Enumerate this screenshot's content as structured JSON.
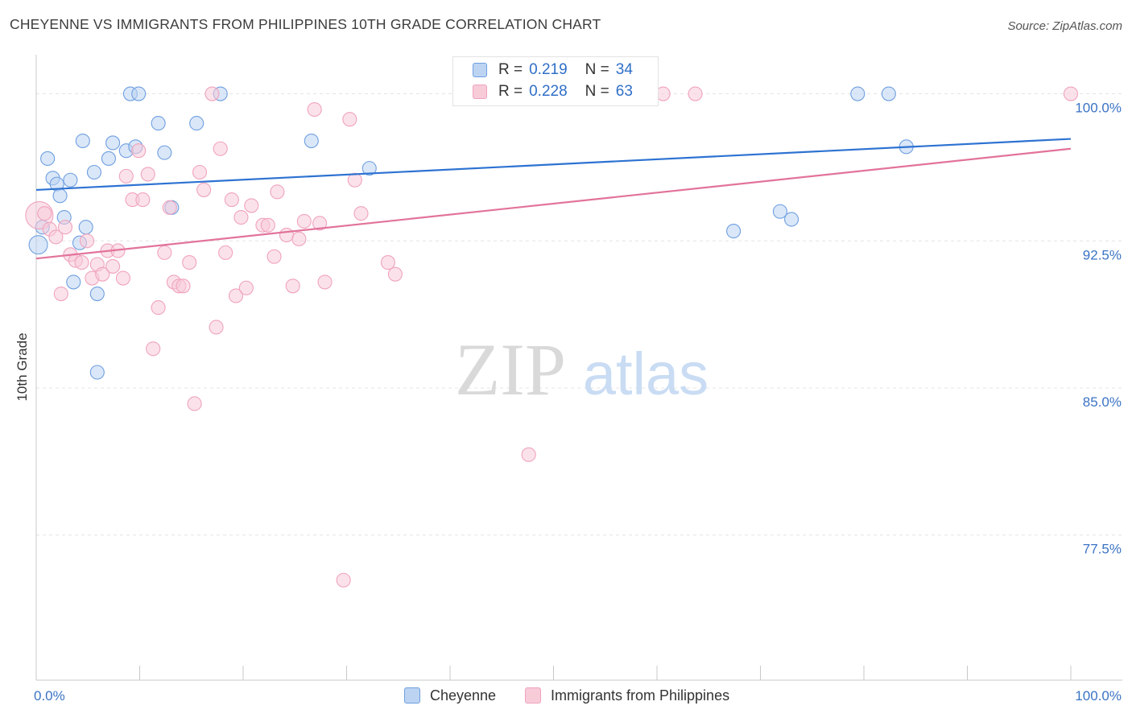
{
  "title": "CHEYENNE VS IMMIGRANTS FROM PHILIPPINES 10TH GRADE CORRELATION CHART",
  "source": "Source: ZipAtlas.com",
  "watermark": {
    "zip": "ZIP",
    "atlas": "atlas"
  },
  "legend": {
    "r_label": "R =",
    "n_label": "N =",
    "items": [
      {
        "r": "0.219",
        "n": "34"
      },
      {
        "r": "0.228",
        "n": "63"
      }
    ]
  },
  "chart_data": {
    "type": "scatter",
    "title": "CHEYENNE VS IMMIGRANTS FROM PHILIPPINES 10TH GRADE CORRELATION CHART",
    "xlabel": "",
    "ylabel": "10th Grade",
    "xlim": [
      0,
      100
    ],
    "ylim": [
      70.1,
      101.5
    ],
    "x_tick_labels": [
      "0.0%",
      "100.0%"
    ],
    "y_ticks": [
      {
        "value": 100.0,
        "label": "100.0%"
      },
      {
        "value": 92.5,
        "label": "92.5%"
      },
      {
        "value": 85.0,
        "label": "85.0%"
      },
      {
        "value": 77.5,
        "label": "77.5%"
      }
    ],
    "grid": true,
    "legend_position": "top-center",
    "series": [
      {
        "name": "Cheyenne",
        "color": "#6f9fe0",
        "fill": "#bcd4f2",
        "line_color": "#2d72d2",
        "trend": {
          "x": [
            0,
            100
          ],
          "y": [
            95.1,
            97.7
          ]
        },
        "points": [
          {
            "x": 0.2,
            "y": 92.3,
            "s": 1.35
          },
          {
            "x": 0.6,
            "y": 93.2
          },
          {
            "x": 1.1,
            "y": 96.7
          },
          {
            "x": 1.6,
            "y": 95.7
          },
          {
            "x": 2.0,
            "y": 95.4
          },
          {
            "x": 2.3,
            "y": 94.8
          },
          {
            "x": 2.7,
            "y": 93.7
          },
          {
            "x": 3.3,
            "y": 95.6
          },
          {
            "x": 3.6,
            "y": 90.4
          },
          {
            "x": 4.2,
            "y": 92.4
          },
          {
            "x": 4.5,
            "y": 97.6
          },
          {
            "x": 4.8,
            "y": 93.2
          },
          {
            "x": 5.6,
            "y": 96.0
          },
          {
            "x": 5.9,
            "y": 89.8
          },
          {
            "x": 5.9,
            "y": 85.8
          },
          {
            "x": 7.0,
            "y": 96.7
          },
          {
            "x": 7.4,
            "y": 97.5
          },
          {
            "x": 8.7,
            "y": 97.1
          },
          {
            "x": 9.1,
            "y": 100.0
          },
          {
            "x": 9.9,
            "y": 100.0
          },
          {
            "x": 9.6,
            "y": 97.3
          },
          {
            "x": 11.8,
            "y": 98.5
          },
          {
            "x": 12.4,
            "y": 97.0
          },
          {
            "x": 13.1,
            "y": 94.2
          },
          {
            "x": 15.5,
            "y": 98.5
          },
          {
            "x": 17.8,
            "y": 100.0
          },
          {
            "x": 26.6,
            "y": 97.6
          },
          {
            "x": 32.2,
            "y": 96.2
          },
          {
            "x": 67.4,
            "y": 93.0
          },
          {
            "x": 71.9,
            "y": 94.0
          },
          {
            "x": 73.0,
            "y": 93.6
          },
          {
            "x": 79.4,
            "y": 100.0
          },
          {
            "x": 82.4,
            "y": 100.0
          },
          {
            "x": 84.1,
            "y": 97.3
          }
        ]
      },
      {
        "name": "Immigrants from Philippines",
        "color": "#f0a3bd",
        "fill": "#f8cbd9",
        "line_color": "#e2739b",
        "trend": {
          "x": [
            0,
            100
          ],
          "y": [
            91.6,
            97.2
          ]
        },
        "points": [
          {
            "x": 0.3,
            "y": 93.8,
            "s": 2.0
          },
          {
            "x": 0.8,
            "y": 93.9
          },
          {
            "x": 1.3,
            "y": 93.1
          },
          {
            "x": 1.9,
            "y": 92.7
          },
          {
            "x": 2.4,
            "y": 89.8
          },
          {
            "x": 2.8,
            "y": 93.2
          },
          {
            "x": 3.3,
            "y": 91.8
          },
          {
            "x": 3.8,
            "y": 91.5
          },
          {
            "x": 4.4,
            "y": 91.4
          },
          {
            "x": 4.9,
            "y": 92.5
          },
          {
            "x": 5.4,
            "y": 90.6
          },
          {
            "x": 5.9,
            "y": 91.3
          },
          {
            "x": 6.4,
            "y": 90.8
          },
          {
            "x": 6.9,
            "y": 92.0
          },
          {
            "x": 7.4,
            "y": 91.2
          },
          {
            "x": 7.9,
            "y": 92.0
          },
          {
            "x": 8.4,
            "y": 90.6
          },
          {
            "x": 8.7,
            "y": 95.8
          },
          {
            "x": 9.3,
            "y": 94.6
          },
          {
            "x": 9.9,
            "y": 97.1
          },
          {
            "x": 10.3,
            "y": 94.6
          },
          {
            "x": 10.8,
            "y": 95.9
          },
          {
            "x": 11.3,
            "y": 87.0
          },
          {
            "x": 11.8,
            "y": 89.1
          },
          {
            "x": 12.4,
            "y": 91.9
          },
          {
            "x": 12.9,
            "y": 94.2
          },
          {
            "x": 13.3,
            "y": 90.4
          },
          {
            "x": 13.8,
            "y": 90.2
          },
          {
            "x": 14.2,
            "y": 90.2
          },
          {
            "x": 14.8,
            "y": 91.4
          },
          {
            "x": 15.3,
            "y": 84.2
          },
          {
            "x": 15.8,
            "y": 96.0
          },
          {
            "x": 16.2,
            "y": 95.1
          },
          {
            "x": 17.0,
            "y": 100.0
          },
          {
            "x": 17.4,
            "y": 88.1
          },
          {
            "x": 17.8,
            "y": 97.2
          },
          {
            "x": 18.3,
            "y": 91.9
          },
          {
            "x": 18.9,
            "y": 94.6
          },
          {
            "x": 19.3,
            "y": 89.7
          },
          {
            "x": 19.8,
            "y": 93.7
          },
          {
            "x": 20.3,
            "y": 90.1
          },
          {
            "x": 20.8,
            "y": 94.3
          },
          {
            "x": 21.9,
            "y": 93.3
          },
          {
            "x": 22.4,
            "y": 93.3
          },
          {
            "x": 23.0,
            "y": 91.7
          },
          {
            "x": 23.3,
            "y": 95.0
          },
          {
            "x": 24.2,
            "y": 92.8
          },
          {
            "x": 24.8,
            "y": 90.2
          },
          {
            "x": 25.4,
            "y": 92.6
          },
          {
            "x": 25.9,
            "y": 93.5
          },
          {
            "x": 26.9,
            "y": 99.2
          },
          {
            "x": 27.4,
            "y": 93.4
          },
          {
            "x": 27.9,
            "y": 90.4
          },
          {
            "x": 29.7,
            "y": 75.2
          },
          {
            "x": 30.3,
            "y": 98.7
          },
          {
            "x": 30.8,
            "y": 95.6
          },
          {
            "x": 31.4,
            "y": 93.9
          },
          {
            "x": 34.0,
            "y": 91.4
          },
          {
            "x": 34.7,
            "y": 90.8
          },
          {
            "x": 47.6,
            "y": 81.6
          },
          {
            "x": 60.6,
            "y": 100.0
          },
          {
            "x": 63.7,
            "y": 100.0
          },
          {
            "x": 100.0,
            "y": 100.0
          }
        ]
      }
    ]
  }
}
